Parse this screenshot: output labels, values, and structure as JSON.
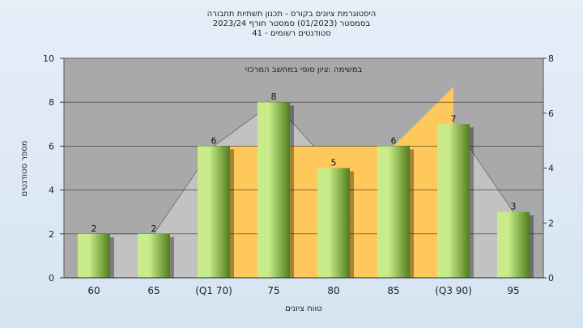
{
  "chart_data": {
    "type": "bar",
    "title_lines": [
      "היסטוגרמת ציונים בקורס - תכנון תשתיות תחבורה",
      "בסמסטר  (01/2023)  סמסטר חורף  2023/24",
      "סטודנטים רשומים - 41"
    ],
    "subtitle": "במשימה :ציון סופי במחשב המרכזי",
    "xlabel": "טווח ציונים",
    "ylabel": "מספר סטודנטים",
    "categories": [
      "60",
      "65",
      "(Q1 70)",
      "75",
      "80",
      "85",
      "(Q3 90)",
      "95"
    ],
    "values": [
      2,
      2,
      6,
      8,
      5,
      6,
      7,
      3
    ],
    "ylim": [
      0,
      10
    ],
    "yticks": [
      0,
      2,
      4,
      6,
      8,
      10
    ],
    "y2lim": [
      0,
      8
    ],
    "y2ticks": [
      0,
      2,
      4,
      6,
      8
    ],
    "iqr_band": {
      "from_category": "(Q1 70)",
      "to_category": "(Q3 90)",
      "level": 6,
      "peak": 7
    },
    "grid": true,
    "colors": {
      "bar_light": "#c9ec8a",
      "bar_dark": "#4f7d1c",
      "band": "#ffc85a",
      "area": "#c4c4c4",
      "plot_bg": "#a9a9a9"
    }
  }
}
